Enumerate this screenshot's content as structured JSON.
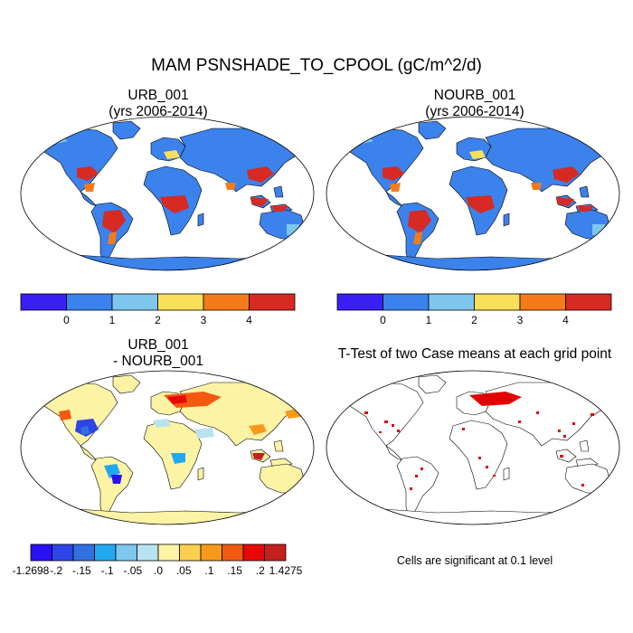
{
  "title": "MAM PSNSHADE_TO_CPOOL (gC/m^2/d)",
  "panels": [
    {
      "name": "URB_001",
      "subtitle": "(yrs 2006-2014)"
    },
    {
      "name": "NOURB_001",
      "subtitle": "(yrs 2006-2014)"
    },
    {
      "name": "URB_001",
      "subtitle": "- NOURB_001"
    },
    {
      "name": "T-Test of two Case means at each grid point",
      "subtitle": ""
    }
  ],
  "colors": {
    "ocean": "#ffffff",
    "coast": "#000000",
    "sig_red": "#e00000"
  },
  "chart_data": [
    {
      "type": "heatmap",
      "panel": "URB_001 (yrs 2006-2014)",
      "colorbar": {
        "labels": [
          "0",
          "1",
          "2",
          "3",
          "4"
        ],
        "colors": [
          "#3a1ff5",
          "#3b82ec",
          "#7ec6ee",
          "#fae05a",
          "#f57a1a",
          "#d62a23"
        ]
      }
    },
    {
      "type": "heatmap",
      "panel": "NOURB_001 (yrs 2006-2014)",
      "colorbar": {
        "labels": [
          "0",
          "1",
          "2",
          "3",
          "4"
        ],
        "colors": [
          "#3a1ff5",
          "#3b82ec",
          "#7ec6ee",
          "#fae05a",
          "#f57a1a",
          "#d62a23"
        ]
      }
    },
    {
      "type": "heatmap",
      "panel": "URB_001 - NOURB_001",
      "colorbar": {
        "labels": [
          "-1.2698",
          "-.2",
          "-.15",
          "-.1",
          "-.05",
          ".0",
          ".05",
          ".1",
          ".15",
          ".2",
          "1.4275"
        ],
        "colors": [
          "#2a10f5",
          "#2d45e6",
          "#3070e0",
          "#22a8f0",
          "#7cc8ee",
          "#b9e2f0",
          "#fdf3a5",
          "#fad04e",
          "#f79a1c",
          "#f25a12",
          "#e80808",
          "#c4201e"
        ]
      }
    },
    {
      "type": "heatmap",
      "panel": "T-Test of two Case means at each grid point",
      "note": "Cells are significant at 0.1 level"
    }
  ]
}
